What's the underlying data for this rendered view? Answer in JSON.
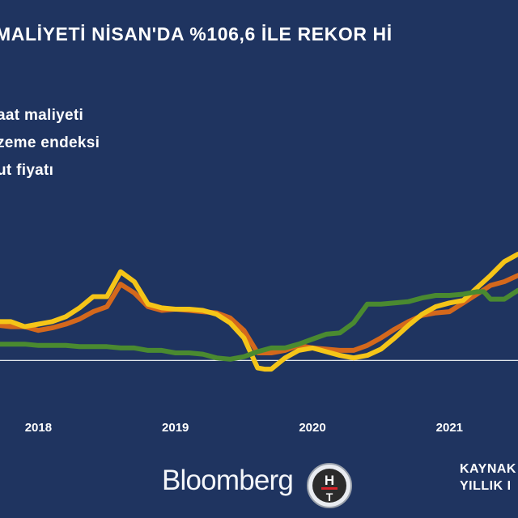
{
  "title": "MALİYETİ NİSAN'DA %106,6 İLE REKOR Hİ",
  "legend": [
    {
      "label": "aat maliyeti",
      "color": "#d4681c"
    },
    {
      "label": "zeme endeksi",
      "color": "#f5c518"
    },
    {
      "label": "ut fiyatı",
      "color": "#4a8a30"
    }
  ],
  "footer": {
    "brand": "Bloomberg",
    "logo_letters": "HT",
    "source_line1": "KAYNAK",
    "source_line2": "YILLIK I"
  },
  "chart_data": {
    "type": "line",
    "title": "",
    "xlabel": "",
    "ylabel": "",
    "x_ticks": [
      "2018",
      "2019",
      "2020",
      "2021"
    ],
    "x_tick_positions": [
      2018,
      2019,
      2020,
      2021
    ],
    "xlim": [
      2017.72,
      2021.5
    ],
    "ylim": [
      -8,
      60
    ],
    "zero_line": true,
    "grid": false,
    "series": [
      {
        "name": "aat maliyeti",
        "color": "#d4681c",
        "x": [
          2017.72,
          2017.8,
          2017.9,
          2018.0,
          2018.1,
          2018.2,
          2018.3,
          2018.4,
          2018.5,
          2018.6,
          2018.7,
          2018.8,
          2018.9,
          2019.0,
          2019.1,
          2019.2,
          2019.3,
          2019.4,
          2019.5,
          2019.6,
          2019.7,
          2019.8,
          2019.9,
          2020.0,
          2020.1,
          2020.2,
          2020.3,
          2020.4,
          2020.5,
          2020.6,
          2020.7,
          2020.8,
          2020.9,
          2021.0,
          2021.1,
          2021.2,
          2021.3,
          2021.4,
          2021.5
        ],
        "values": [
          14,
          13.5,
          13.5,
          12,
          13,
          14.5,
          16.5,
          19.5,
          21.5,
          30.5,
          27,
          21.5,
          20,
          20.5,
          20,
          19.5,
          19,
          17,
          12,
          3,
          3,
          4,
          6,
          5,
          4.5,
          4,
          4,
          6,
          9,
          12.5,
          15.5,
          18,
          19,
          19.5,
          23,
          26.5,
          30,
          31.5,
          34
        ]
      },
      {
        "name": "zeme endeksi",
        "color": "#f5c518",
        "x": [
          2017.72,
          2017.8,
          2017.9,
          2018.0,
          2018.1,
          2018.2,
          2018.3,
          2018.4,
          2018.5,
          2018.6,
          2018.7,
          2018.8,
          2018.9,
          2019.0,
          2019.1,
          2019.2,
          2019.3,
          2019.4,
          2019.5,
          2019.6,
          2019.65,
          2019.7,
          2019.8,
          2019.9,
          2020.0,
          2020.1,
          2020.2,
          2020.3,
          2020.4,
          2020.5,
          2020.6,
          2020.7,
          2020.8,
          2020.9,
          2021.0,
          2021.1,
          2021.2,
          2021.3,
          2021.4,
          2021.5
        ],
        "values": [
          15.5,
          15.5,
          13.5,
          14.5,
          15.5,
          17.5,
          21,
          25.5,
          25.5,
          35.5,
          31.5,
          22.5,
          21,
          20.5,
          20.5,
          20,
          18.5,
          15,
          9,
          -3,
          -3.5,
          -3.5,
          1,
          4,
          5,
          3.5,
          2,
          1,
          2,
          4.5,
          9,
          14,
          18.5,
          21.5,
          23,
          24,
          29,
          34,
          39.5,
          42.5
        ]
      },
      {
        "name": "ut fiyatı",
        "color": "#4a8a30",
        "x": [
          2017.72,
          2017.8,
          2017.9,
          2018.0,
          2018.1,
          2018.2,
          2018.3,
          2018.4,
          2018.5,
          2018.6,
          2018.7,
          2018.8,
          2018.9,
          2019.0,
          2019.1,
          2019.2,
          2019.3,
          2019.4,
          2019.5,
          2019.6,
          2019.7,
          2019.8,
          2019.9,
          2020.0,
          2020.1,
          2020.2,
          2020.3,
          2020.4,
          2020.5,
          2020.6,
          2020.7,
          2020.8,
          2020.9,
          2021.0,
          2021.1,
          2021.2,
          2021.25,
          2021.3,
          2021.4,
          2021.5
        ],
        "values": [
          6.5,
          6.5,
          6.5,
          6,
          6,
          6,
          5.5,
          5.5,
          5.5,
          5,
          5,
          4,
          4,
          3,
          3,
          2.5,
          1,
          0.5,
          1.5,
          3.5,
          5,
          5,
          6.5,
          8.5,
          10.5,
          11,
          15,
          22.5,
          22.5,
          23,
          23.5,
          25,
          26,
          26,
          26.5,
          27.5,
          27.5,
          24.5,
          24.5,
          28
        ]
      }
    ]
  }
}
